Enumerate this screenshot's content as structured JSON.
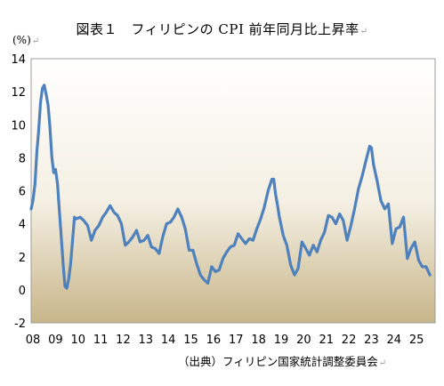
{
  "header": {
    "title": "図表１　フィリピンの CPI 前年同月比上昇率",
    "unit": "(%)",
    "source": "（出典）フィリピン国家統計調整委員会",
    "return_mark": "↵"
  },
  "chart_data": {
    "type": "line",
    "title": "図表１　フィリピンの CPI 前年同月比上昇率",
    "xlabel": "",
    "ylabel": "(%)",
    "ylim": [
      -2,
      14
    ],
    "yticks": [
      "-2",
      "0",
      "2",
      "4",
      "6",
      "8",
      "10",
      "12",
      "14"
    ],
    "xlim": [
      2008.0,
      2025.9
    ],
    "xtick_labels": [
      "08",
      "09",
      "10",
      "11",
      "12",
      "13",
      "14",
      "15",
      "16",
      "17",
      "18",
      "19",
      "20",
      "21",
      "22",
      "23",
      "24",
      "25"
    ],
    "grid": false,
    "legend": "none",
    "colors": {
      "line": "#4f81bd",
      "plot_bg_top": "#ffffff",
      "plot_bg_bottom": "#c8b68a",
      "axis": "#888888"
    },
    "series": [
      {
        "x": [
          2008.0,
          2008.08,
          2008.17,
          2008.25,
          2008.33,
          2008.42,
          2008.5,
          2008.58,
          2008.67,
          2008.75,
          2008.83,
          2008.92,
          2009.0,
          2009.08,
          2009.17,
          2009.25,
          2009.33,
          2009.42,
          2009.5,
          2009.58,
          2009.67,
          2009.75,
          2009.83,
          2009.92,
          2010.0,
          2010.17,
          2010.33,
          2010.5,
          2010.67,
          2010.83,
          2011.0,
          2011.17,
          2011.33,
          2011.5,
          2011.67,
          2011.83,
          2012.0,
          2012.17,
          2012.33,
          2012.5,
          2012.67,
          2012.83,
          2013.0,
          2013.17,
          2013.33,
          2013.5,
          2013.67,
          2013.83,
          2014.0,
          2014.17,
          2014.33,
          2014.5,
          2014.67,
          2014.83,
          2015.0,
          2015.17,
          2015.33,
          2015.5,
          2015.67,
          2015.83,
          2016.0,
          2016.17,
          2016.33,
          2016.5,
          2016.67,
          2016.83,
          2017.0,
          2017.17,
          2017.33,
          2017.5,
          2017.67,
          2017.83,
          2018.0,
          2018.17,
          2018.33,
          2018.5,
          2018.67,
          2018.75,
          2018.83,
          2018.92,
          2019.0,
          2019.17,
          2019.33,
          2019.5,
          2019.67,
          2019.83,
          2020.0,
          2020.17,
          2020.33,
          2020.5,
          2020.67,
          2020.83,
          2021.0,
          2021.17,
          2021.33,
          2021.5,
          2021.67,
          2021.83,
          2022.0,
          2022.17,
          2022.33,
          2022.5,
          2022.67,
          2022.83,
          2023.0,
          2023.08,
          2023.17,
          2023.33,
          2023.5,
          2023.67,
          2023.83,
          2024.0,
          2024.17,
          2024.33,
          2024.5,
          2024.67,
          2024.83,
          2025.0,
          2025.17,
          2025.33,
          2025.5,
          2025.67
        ],
        "y": [
          4.9,
          5.4,
          6.4,
          8.3,
          9.6,
          11.4,
          12.2,
          12.4,
          11.8,
          11.2,
          9.9,
          8.0,
          7.1,
          7.3,
          6.4,
          4.8,
          3.3,
          1.5,
          0.2,
          0.1,
          0.7,
          1.6,
          2.9,
          4.4,
          4.3,
          4.4,
          4.2,
          3.9,
          3.0,
          3.6,
          3.9,
          4.4,
          4.7,
          5.1,
          4.7,
          4.5,
          4.0,
          2.7,
          2.9,
          3.2,
          3.6,
          2.9,
          3.0,
          3.3,
          2.6,
          2.5,
          2.2,
          3.2,
          4.0,
          4.1,
          4.4,
          4.9,
          4.4,
          3.7,
          2.4,
          2.4,
          1.6,
          0.9,
          0.6,
          0.4,
          1.4,
          1.1,
          1.2,
          1.9,
          2.3,
          2.6,
          2.7,
          3.4,
          3.1,
          2.8,
          3.1,
          3.0,
          3.7,
          4.3,
          5.0,
          6.0,
          6.7,
          6.7,
          5.8,
          5.1,
          4.4,
          3.3,
          2.7,
          1.5,
          0.9,
          1.3,
          2.9,
          2.5,
          2.1,
          2.7,
          2.3,
          3.0,
          3.5,
          4.5,
          4.4,
          4.0,
          4.6,
          4.2,
          3.0,
          3.9,
          4.9,
          6.1,
          6.9,
          7.8,
          8.7,
          8.6,
          7.6,
          6.6,
          5.4,
          4.9,
          5.2,
          2.8,
          3.7,
          3.8,
          4.4,
          1.9,
          2.5,
          2.9,
          1.8,
          1.4,
          1.4,
          0.9
        ]
      }
    ]
  }
}
